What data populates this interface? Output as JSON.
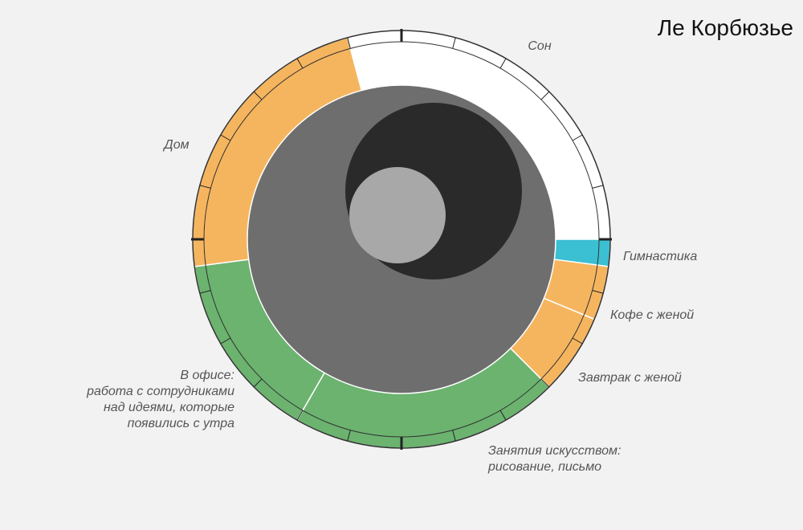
{
  "chart_data": {
    "type": "donut",
    "title": "Ле Корбюзье",
    "categories": [
      "Сон",
      "Гимнастика",
      "Кофе с женой",
      "Завтрак с женой",
      "Занятия искусством:\nрисование, письмо",
      "В офисе:\nработа с сотрудниками\nнад идеями, которые\nпоявились с утра",
      "Дом"
    ],
    "values": [
      7,
      0.5,
      1,
      1.5,
      5,
      3.5,
      5.5
    ],
    "colors": [
      "#ffffff",
      "#3bbfd3",
      "#f5b55f",
      "#f5b55f",
      "#6bb36f",
      "#6bb36f",
      "#f5b55f"
    ]
  }
}
